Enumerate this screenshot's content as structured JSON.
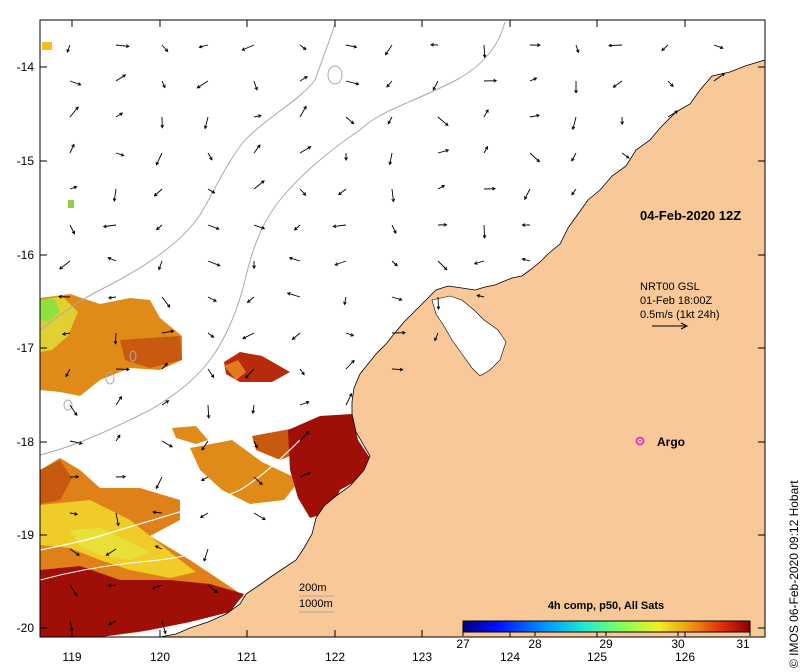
{
  "map": {
    "date_label": "04-Feb-2020 12Z",
    "current_source": "NRT00 GSL",
    "current_time": "01-Feb 18:00Z",
    "scale_vector_label": "0.5m/s (1kt 24h)",
    "argo_label": "Argo",
    "isobath_labels": [
      "200m",
      "1000m"
    ],
    "lon_ticks": [
      "119",
      "120",
      "121",
      "122",
      "123",
      "124",
      "125",
      "126"
    ],
    "lat_ticks": [
      "-14",
      "-15",
      "-16",
      "-17",
      "-18",
      "-19",
      "-20"
    ],
    "land_color": "#f8c898",
    "argo_color": "#dd22dd"
  },
  "colorbar": {
    "title": "4h comp, p50, All Sats",
    "ticks": [
      "27",
      "28",
      "29",
      "30",
      "31"
    ],
    "range": [
      27,
      31
    ]
  },
  "credit": "© IMOS 06-Feb-2020 09:12 Hobart"
}
